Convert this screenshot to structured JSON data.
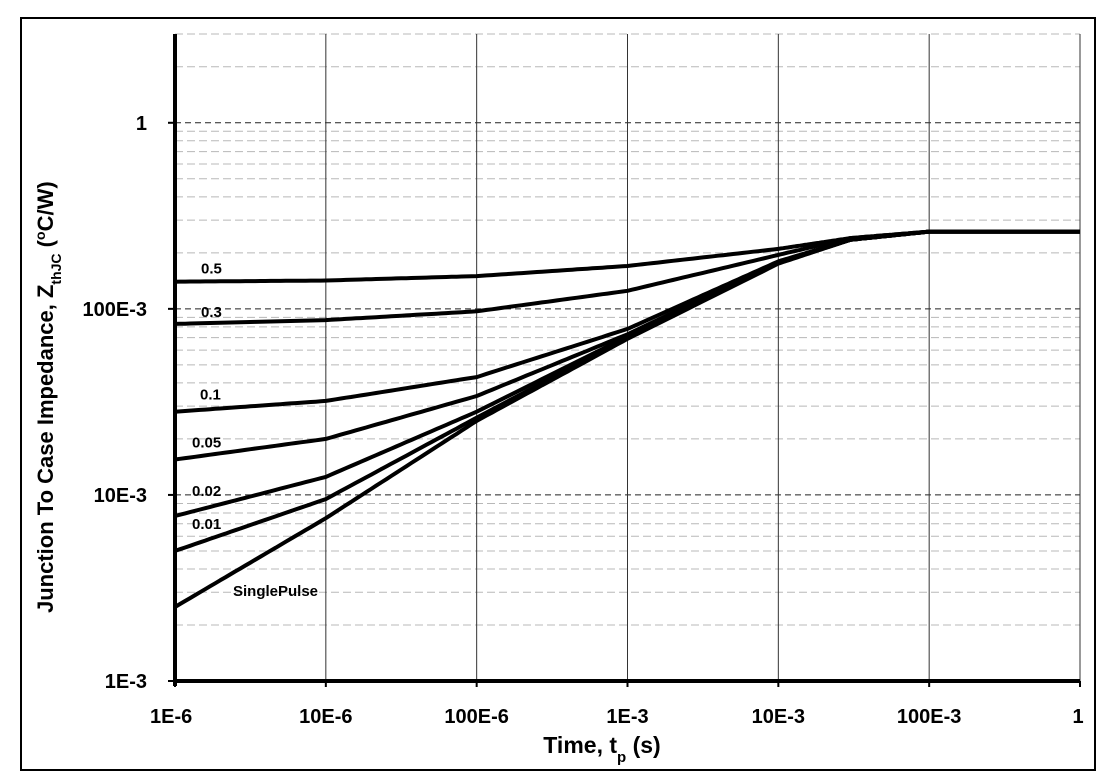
{
  "chart_data": {
    "type": "line",
    "xlabel": {
      "main": "Time, t",
      "sub": "p",
      "unit": " (s)"
    },
    "ylabel": {
      "main": "Junction To Case Impedance, Z",
      "sub": "thJC",
      "unit": " (",
      "sup": "o",
      "unit_end": "C/W)"
    },
    "x_scale": "log",
    "y_scale": "log",
    "xlim": [
      1e-06,
      1
    ],
    "ylim": [
      0.001,
      3
    ],
    "x_ticks": [
      {
        "value": 1e-06,
        "label": "1E-6"
      },
      {
        "value": 1e-05,
        "label": "10E-6"
      },
      {
        "value": 0.0001,
        "label": "100E-6"
      },
      {
        "value": 0.001,
        "label": "1E-3"
      },
      {
        "value": 0.01,
        "label": "10E-3"
      },
      {
        "value": 0.1,
        "label": "100E-3"
      },
      {
        "value": 1,
        "label": "1"
      }
    ],
    "y_ticks": [
      {
        "value": 0.001,
        "label": "1E-3"
      },
      {
        "value": 0.01,
        "label": "10E-3"
      },
      {
        "value": 0.1,
        "label": "100E-3"
      },
      {
        "value": 1,
        "label": "1"
      }
    ],
    "grid": {
      "x_major": true,
      "y_major_dashed": true,
      "y_minor_dashed": true
    },
    "series": [
      {
        "name": "0.5",
        "x": [
          1e-06,
          1e-05,
          0.0001,
          0.001,
          0.01,
          0.03,
          0.1,
          1
        ],
        "y": [
          0.14,
          0.142,
          0.15,
          0.17,
          0.21,
          0.24,
          0.26,
          0.26
        ]
      },
      {
        "name": "0.3",
        "x": [
          1e-06,
          1e-05,
          0.0001,
          0.001,
          0.01,
          0.03,
          0.1,
          1
        ],
        "y": [
          0.083,
          0.087,
          0.097,
          0.125,
          0.195,
          0.24,
          0.26,
          0.26
        ]
      },
      {
        "name": "0.1",
        "x": [
          1e-06,
          1e-05,
          0.0001,
          0.001,
          0.01,
          0.03,
          0.1,
          1
        ],
        "y": [
          0.028,
          0.032,
          0.043,
          0.078,
          0.18,
          0.235,
          0.26,
          0.26
        ]
      },
      {
        "name": "0.05",
        "x": [
          1e-06,
          1e-05,
          0.0001,
          0.001,
          0.01,
          0.03,
          0.1,
          1
        ],
        "y": [
          0.0155,
          0.02,
          0.034,
          0.073,
          0.178,
          0.235,
          0.26,
          0.26
        ]
      },
      {
        "name": "0.02",
        "x": [
          1e-06,
          1e-05,
          0.0001,
          0.001,
          0.01,
          0.03,
          0.1,
          1
        ],
        "y": [
          0.0077,
          0.0125,
          0.028,
          0.071,
          0.177,
          0.235,
          0.26,
          0.26
        ]
      },
      {
        "name": "0.01",
        "x": [
          1e-06,
          1e-05,
          0.0001,
          0.001,
          0.01,
          0.03,
          0.1,
          1
        ],
        "y": [
          0.005,
          0.0095,
          0.026,
          0.07,
          0.176,
          0.235,
          0.26,
          0.26
        ]
      },
      {
        "name": "SinglePulse",
        "x": [
          1e-06,
          1e-05,
          0.0001,
          0.001,
          0.01,
          0.03,
          0.1,
          1
        ],
        "y": [
          0.0025,
          0.0075,
          0.025,
          0.069,
          0.175,
          0.235,
          0.26,
          0.26
        ]
      }
    ]
  }
}
